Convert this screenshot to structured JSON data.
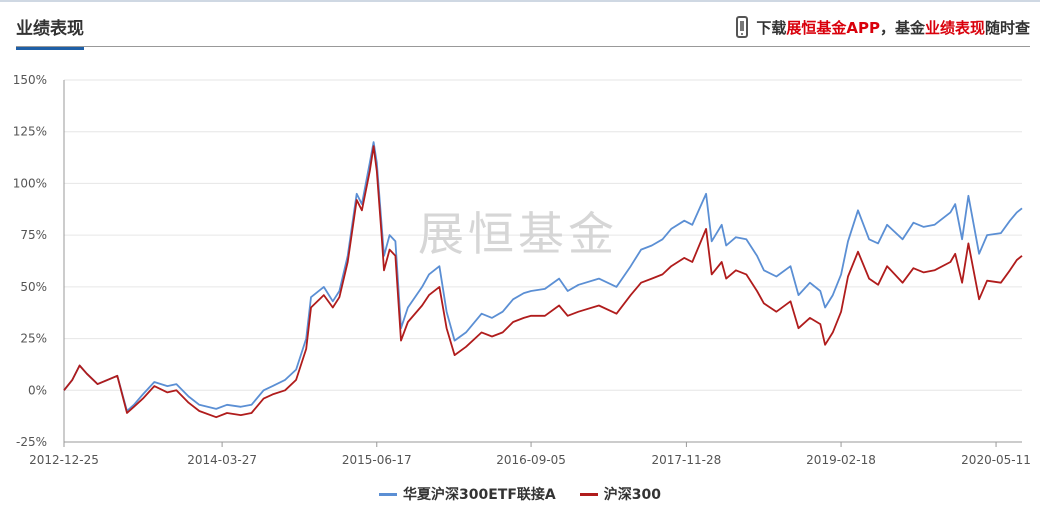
{
  "header": {
    "title": "业绩表现",
    "promo_prefix": "下载",
    "promo_brand": "展恒基金APP",
    "promo_mid": "，基金",
    "promo_highlight": "业绩表现",
    "promo_suffix": "随时查",
    "promo_icon": "phone-icon"
  },
  "watermark": "展恒基金",
  "colors": {
    "series1": "#5b8fd4",
    "series2": "#b01c1c",
    "grid": "#e6e6e6",
    "axis": "#999999",
    "highlight": "#d9000b"
  },
  "chart_data": {
    "type": "line",
    "xlabel": "",
    "ylabel": "",
    "ylim": [
      -25,
      150
    ],
    "yticks": [
      -25,
      0,
      25,
      50,
      75,
      100,
      125,
      150
    ],
    "ytick_labels": [
      "-25%",
      "0%",
      "25%",
      "50%",
      "75%",
      "100%",
      "125%",
      "150%"
    ],
    "xlim": [
      "2012-12-25",
      "2020-07-25"
    ],
    "xtick_labels": [
      "2012-12-25",
      "2014-03-27",
      "2015-06-17",
      "2016-09-05",
      "2017-11-28",
      "2019-02-18",
      "2020-05-11"
    ],
    "grid": true,
    "legend_position": "bottom-center",
    "series": [
      {
        "name": "华夏沪深300ETF联接A",
        "color": "#5b8fd4",
        "points": [
          [
            "2012-12-25",
            0
          ],
          [
            "2013-01-18",
            5
          ],
          [
            "2013-02-08",
            12
          ],
          [
            "2013-03-01",
            8
          ],
          [
            "2013-04-01",
            3
          ],
          [
            "2013-05-28",
            7
          ],
          [
            "2013-06-25",
            -10
          ],
          [
            "2013-07-15",
            -7
          ],
          [
            "2013-08-10",
            -2
          ],
          [
            "2013-09-12",
            4
          ],
          [
            "2013-10-20",
            2
          ],
          [
            "2013-11-15",
            3
          ],
          [
            "2013-12-20",
            -3
          ],
          [
            "2014-01-20",
            -7
          ],
          [
            "2014-03-10",
            -9
          ],
          [
            "2014-04-10",
            -7
          ],
          [
            "2014-05-20",
            -8
          ],
          [
            "2014-06-20",
            -7
          ],
          [
            "2014-07-25",
            0
          ],
          [
            "2014-08-20",
            2
          ],
          [
            "2014-09-25",
            5
          ],
          [
            "2014-10-27",
            10
          ],
          [
            "2014-11-25",
            25
          ],
          [
            "2014-12-09",
            45
          ],
          [
            "2015-01-15",
            50
          ],
          [
            "2015-02-10",
            43
          ],
          [
            "2015-03-01",
            48
          ],
          [
            "2015-03-25",
            65
          ],
          [
            "2015-04-20",
            95
          ],
          [
            "2015-05-05",
            90
          ],
          [
            "2015-05-28",
            110
          ],
          [
            "2015-06-08",
            120
          ],
          [
            "2015-06-17",
            110
          ],
          [
            "2015-07-01",
            80
          ],
          [
            "2015-07-08",
            65
          ],
          [
            "2015-07-24",
            75
          ],
          [
            "2015-08-10",
            72
          ],
          [
            "2015-08-26",
            30
          ],
          [
            "2015-09-15",
            40
          ],
          [
            "2015-10-26",
            50
          ],
          [
            "2015-11-15",
            56
          ],
          [
            "2015-12-15",
            60
          ],
          [
            "2016-01-05",
            38
          ],
          [
            "2016-01-28",
            24
          ],
          [
            "2016-03-01",
            28
          ],
          [
            "2016-04-15",
            37
          ],
          [
            "2016-05-15",
            35
          ],
          [
            "2016-06-15",
            38
          ],
          [
            "2016-07-15",
            44
          ],
          [
            "2016-08-15",
            47
          ],
          [
            "2016-09-05",
            48
          ],
          [
            "2016-10-15",
            49
          ],
          [
            "2016-11-25",
            54
          ],
          [
            "2016-12-20",
            48
          ],
          [
            "2017-01-20",
            51
          ],
          [
            "2017-03-20",
            54
          ],
          [
            "2017-05-10",
            50
          ],
          [
            "2017-06-20",
            60
          ],
          [
            "2017-07-20",
            68
          ],
          [
            "2017-08-20",
            70
          ],
          [
            "2017-09-20",
            73
          ],
          [
            "2017-10-15",
            78
          ],
          [
            "2017-11-22",
            82
          ],
          [
            "2017-12-15",
            80
          ],
          [
            "2018-01-24",
            95
          ],
          [
            "2018-02-09",
            72
          ],
          [
            "2018-03-10",
            80
          ],
          [
            "2018-03-23",
            70
          ],
          [
            "2018-04-20",
            74
          ],
          [
            "2018-05-20",
            73
          ],
          [
            "2018-06-20",
            65
          ],
          [
            "2018-07-10",
            58
          ],
          [
            "2018-08-15",
            55
          ],
          [
            "2018-09-25",
            60
          ],
          [
            "2018-10-18",
            46
          ],
          [
            "2018-11-20",
            52
          ],
          [
            "2018-12-20",
            48
          ],
          [
            "2019-01-03",
            40
          ],
          [
            "2019-01-25",
            46
          ],
          [
            "2019-02-18",
            56
          ],
          [
            "2019-03-10",
            72
          ],
          [
            "2019-04-08",
            87
          ],
          [
            "2019-05-10",
            73
          ],
          [
            "2019-06-05",
            71
          ],
          [
            "2019-07-01",
            80
          ],
          [
            "2019-08-15",
            73
          ],
          [
            "2019-09-15",
            81
          ],
          [
            "2019-10-15",
            79
          ],
          [
            "2019-11-15",
            80
          ],
          [
            "2019-12-31",
            86
          ],
          [
            "2020-01-14",
            90
          ],
          [
            "2020-02-03",
            73
          ],
          [
            "2020-02-21",
            94
          ],
          [
            "2020-03-23",
            66
          ],
          [
            "2020-04-15",
            75
          ],
          [
            "2020-05-25",
            76
          ],
          [
            "2020-06-20",
            82
          ],
          [
            "2020-07-10",
            86
          ],
          [
            "2020-07-25",
            88
          ]
        ]
      },
      {
        "name": "沪深300",
        "color": "#b01c1c",
        "points": [
          [
            "2012-12-25",
            0
          ],
          [
            "2013-01-18",
            5
          ],
          [
            "2013-02-08",
            12
          ],
          [
            "2013-03-01",
            8
          ],
          [
            "2013-04-01",
            3
          ],
          [
            "2013-05-28",
            7
          ],
          [
            "2013-06-25",
            -11
          ],
          [
            "2013-07-15",
            -8
          ],
          [
            "2013-08-10",
            -4
          ],
          [
            "2013-09-12",
            2
          ],
          [
            "2013-10-20",
            -1
          ],
          [
            "2013-11-15",
            0
          ],
          [
            "2013-12-20",
            -6
          ],
          [
            "2014-01-20",
            -10
          ],
          [
            "2014-03-10",
            -13
          ],
          [
            "2014-04-10",
            -11
          ],
          [
            "2014-05-20",
            -12
          ],
          [
            "2014-06-20",
            -11
          ],
          [
            "2014-07-25",
            -4
          ],
          [
            "2014-08-20",
            -2
          ],
          [
            "2014-09-25",
            0
          ],
          [
            "2014-10-27",
            5
          ],
          [
            "2014-11-25",
            20
          ],
          [
            "2014-12-09",
            40
          ],
          [
            "2015-01-15",
            46
          ],
          [
            "2015-02-10",
            40
          ],
          [
            "2015-03-01",
            45
          ],
          [
            "2015-03-25",
            62
          ],
          [
            "2015-04-20",
            92
          ],
          [
            "2015-05-05",
            87
          ],
          [
            "2015-05-28",
            106
          ],
          [
            "2015-06-08",
            118
          ],
          [
            "2015-06-17",
            106
          ],
          [
            "2015-07-01",
            75
          ],
          [
            "2015-07-08",
            58
          ],
          [
            "2015-07-24",
            68
          ],
          [
            "2015-08-10",
            65
          ],
          [
            "2015-08-26",
            24
          ],
          [
            "2015-09-15",
            33
          ],
          [
            "2015-10-26",
            41
          ],
          [
            "2015-11-15",
            46
          ],
          [
            "2015-12-15",
            50
          ],
          [
            "2016-01-05",
            30
          ],
          [
            "2016-01-28",
            17
          ],
          [
            "2016-03-01",
            21
          ],
          [
            "2016-04-15",
            28
          ],
          [
            "2016-05-15",
            26
          ],
          [
            "2016-06-15",
            28
          ],
          [
            "2016-07-15",
            33
          ],
          [
            "2016-08-15",
            35
          ],
          [
            "2016-09-05",
            36
          ],
          [
            "2016-10-15",
            36
          ],
          [
            "2016-11-25",
            41
          ],
          [
            "2016-12-20",
            36
          ],
          [
            "2017-01-20",
            38
          ],
          [
            "2017-03-20",
            41
          ],
          [
            "2017-05-10",
            37
          ],
          [
            "2017-06-20",
            46
          ],
          [
            "2017-07-20",
            52
          ],
          [
            "2017-08-20",
            54
          ],
          [
            "2017-09-20",
            56
          ],
          [
            "2017-10-15",
            60
          ],
          [
            "2017-11-22",
            64
          ],
          [
            "2017-12-15",
            62
          ],
          [
            "2018-01-24",
            78
          ],
          [
            "2018-02-09",
            56
          ],
          [
            "2018-03-10",
            62
          ],
          [
            "2018-03-23",
            54
          ],
          [
            "2018-04-20",
            58
          ],
          [
            "2018-05-20",
            56
          ],
          [
            "2018-06-20",
            48
          ],
          [
            "2018-07-10",
            42
          ],
          [
            "2018-08-15",
            38
          ],
          [
            "2018-09-25",
            43
          ],
          [
            "2018-10-18",
            30
          ],
          [
            "2018-11-20",
            35
          ],
          [
            "2018-12-20",
            32
          ],
          [
            "2019-01-03",
            22
          ],
          [
            "2019-01-25",
            28
          ],
          [
            "2019-02-18",
            38
          ],
          [
            "2019-03-10",
            55
          ],
          [
            "2019-04-08",
            67
          ],
          [
            "2019-05-10",
            54
          ],
          [
            "2019-06-05",
            51
          ],
          [
            "2019-07-01",
            60
          ],
          [
            "2019-08-15",
            52
          ],
          [
            "2019-09-15",
            59
          ],
          [
            "2019-10-15",
            57
          ],
          [
            "2019-11-15",
            58
          ],
          [
            "2019-12-31",
            62
          ],
          [
            "2020-01-14",
            66
          ],
          [
            "2020-02-03",
            52
          ],
          [
            "2020-02-21",
            71
          ],
          [
            "2020-03-23",
            44
          ],
          [
            "2020-04-15",
            53
          ],
          [
            "2020-05-25",
            52
          ],
          [
            "2020-06-20",
            58
          ],
          [
            "2020-07-10",
            63
          ],
          [
            "2020-07-25",
            65
          ]
        ]
      }
    ]
  }
}
